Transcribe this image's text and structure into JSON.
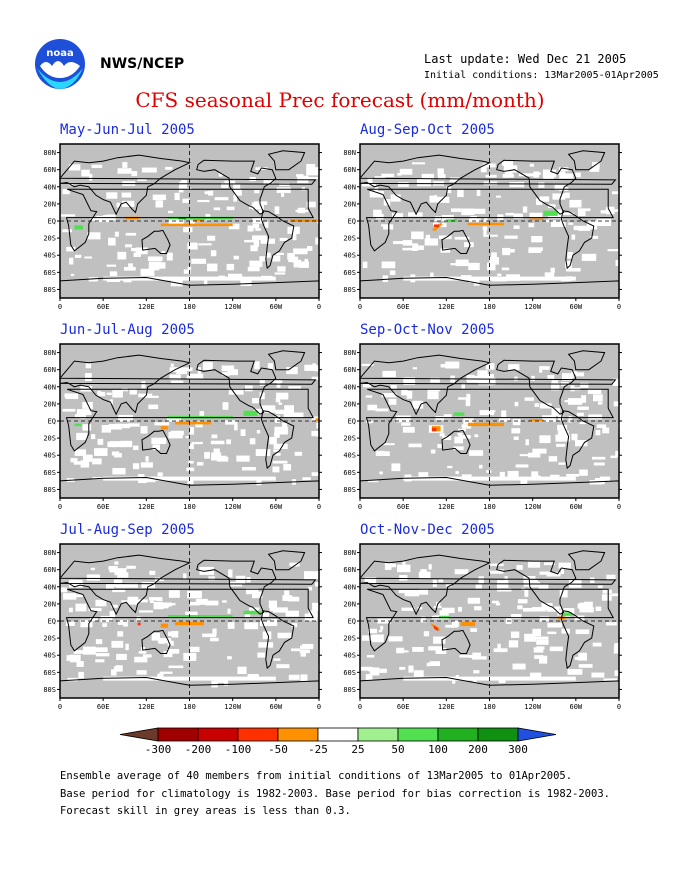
{
  "header": {
    "org": "NWS/NCEP",
    "last_update": "Last update: Wed Dec 21 2005",
    "initial_conditions": "Initial conditions: 13Mar2005-01Apr2005",
    "title": "CFS seasonal Prec forecast (mm/month)"
  },
  "axes": {
    "y_ticks": [
      "80N",
      "60N",
      "40N",
      "20N",
      "EQ",
      "20S",
      "40S",
      "60S",
      "80S"
    ],
    "x_ticks": [
      "0",
      "60E",
      "120E",
      "180",
      "120W",
      "60W",
      "0"
    ]
  },
  "panels": [
    {
      "title": "May-Jun-Jul 2005"
    },
    {
      "title": "Aug-Sep-Oct 2005"
    },
    {
      "title": "Jun-Jul-Aug 2005"
    },
    {
      "title": "Sep-Oct-Nov 2005"
    },
    {
      "title": "Jul-Aug-Sep 2005"
    },
    {
      "title": "Oct-Nov-Dec 2005"
    }
  ],
  "colorbar": {
    "labels": [
      "-300",
      "-200",
      "-100",
      "-50",
      "-25",
      "25",
      "50",
      "100",
      "200",
      "300"
    ],
    "colors": [
      "#6b3a2a",
      "#a00000",
      "#c80000",
      "#ff3000",
      "#ff9000",
      "#ffffff",
      "#a0f090",
      "#50e050",
      "#20b020",
      "#109010",
      "#2050e0"
    ]
  },
  "notes": [
    "Ensemble average of 40 members from initial conditions of 13Mar2005 to 01Apr2005.",
    "Base period for climatology is 1982-2003. Base period for bias correction is 1982-2003.",
    "Forecast skill in grey areas is less than 0.3."
  ],
  "colors": {
    "grey": "#c0c0c0",
    "title_red": "#e00000",
    "panel_title_blue": "#1a2be0"
  }
}
